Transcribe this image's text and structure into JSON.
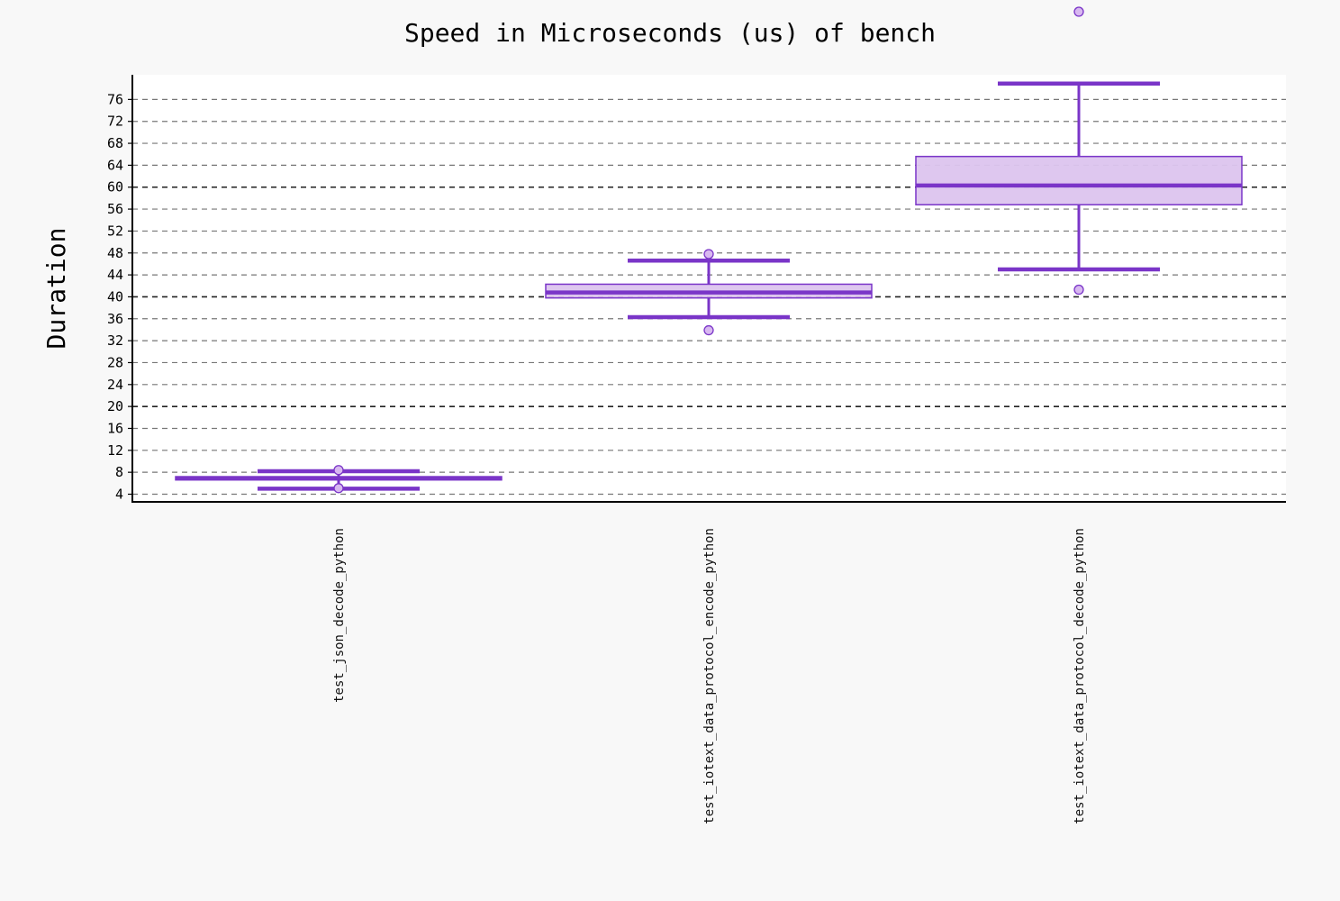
{
  "chart_data": {
    "type": "boxplot",
    "title": "Speed in Microseconds (us) of bench",
    "xlabel": "",
    "ylabel": "Duration",
    "ylim": [
      3,
      81
    ],
    "yticks": [
      4,
      8,
      12,
      16,
      20,
      24,
      28,
      32,
      36,
      40,
      44,
      48,
      52,
      56,
      60,
      64,
      68,
      72,
      76
    ],
    "major_gridlines": [
      20,
      40,
      60
    ],
    "grid": true,
    "categories": [
      "test_json_decode_python",
      "test_iotext_data_protocol_encode_python",
      "test_iotext_data_protocol_decode_python"
    ],
    "series": [
      {
        "whisker_low": 5.0,
        "q1": 6.6,
        "median": 6.9,
        "q3": 7.2,
        "whisker_high": 8.2,
        "outliers": [
          5.1,
          8.4
        ]
      },
      {
        "whisker_low": 36.3,
        "q1": 39.8,
        "median": 40.8,
        "q3": 42.3,
        "whisker_high": 46.6,
        "outliers": [
          33.9,
          47.8
        ]
      },
      {
        "whisker_low": 45.0,
        "q1": 56.8,
        "median": 60.3,
        "q3": 65.6,
        "whisker_high": 78.9,
        "outliers": [
          41.3,
          92.0
        ]
      }
    ],
    "colors": {
      "box_fill": "#dcc4ee",
      "box_stroke": "#7a35c8",
      "whisker": "#7a35c8",
      "outlier_fill": "#d8b8f0",
      "grid_minor": "#777777",
      "grid_major": "#222222",
      "plot_bg": "#ffffff",
      "page_bg": "#f8f8f8"
    }
  }
}
